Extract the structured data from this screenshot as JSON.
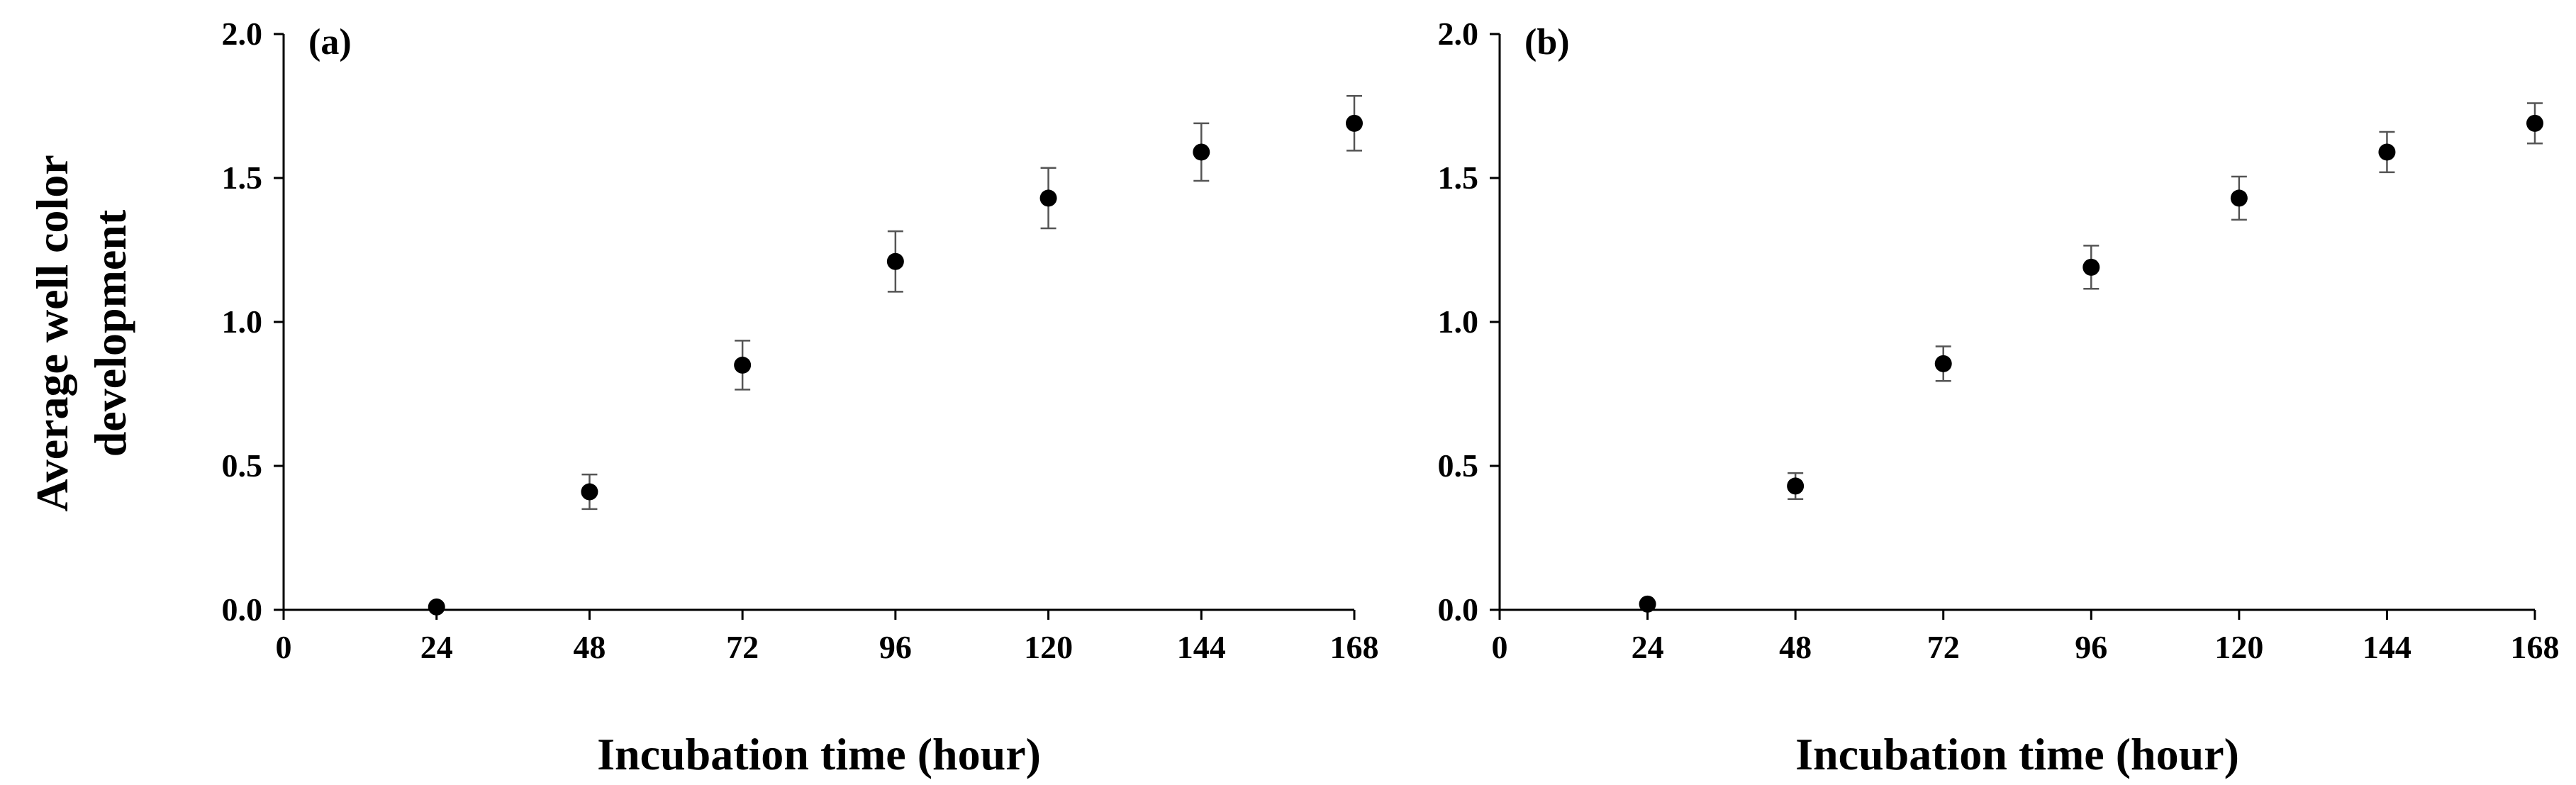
{
  "figure": {
    "ylabel_line1": "Average well color",
    "ylabel_line2": "development"
  },
  "chart_data": [
    {
      "type": "scatter",
      "panel_label": "(a)",
      "xlabel": "Incubation time (hour)",
      "ylabel": "Average well color development",
      "xlim": [
        0,
        168
      ],
      "ylim": [
        0,
        2.0
      ],
      "xticks": [
        "0",
        "24",
        "48",
        "72",
        "96",
        "120",
        "144",
        "168"
      ],
      "yticks": [
        "0.0",
        "0.5",
        "1.0",
        "1.5",
        "2.0"
      ],
      "grid": false,
      "series": [
        {
          "x": [
            24,
            48,
            72,
            96,
            120,
            144,
            168
          ],
          "y": [
            0.01,
            0.41,
            0.85,
            1.21,
            1.43,
            1.59,
            1.69
          ],
          "error": [
            0.0,
            0.06,
            0.085,
            0.105,
            0.105,
            0.1,
            0.095
          ]
        }
      ]
    },
    {
      "type": "scatter",
      "panel_label": "(b)",
      "xlabel": "Incubation time (hour)",
      "ylabel": "",
      "xlim": [
        0,
        168
      ],
      "ylim": [
        0,
        2.0
      ],
      "xticks": [
        "0",
        "24",
        "48",
        "72",
        "96",
        "120",
        "144",
        "168"
      ],
      "yticks": [
        "0.0",
        "0.5",
        "1.0",
        "1.5",
        "2.0"
      ],
      "grid": false,
      "series": [
        {
          "x": [
            24,
            48,
            72,
            96,
            120,
            144,
            168
          ],
          "y": [
            0.02,
            0.43,
            0.855,
            1.19,
            1.43,
            1.59,
            1.69
          ],
          "error": [
            0.0,
            0.045,
            0.06,
            0.075,
            0.075,
            0.07,
            0.07
          ]
        }
      ]
    }
  ]
}
